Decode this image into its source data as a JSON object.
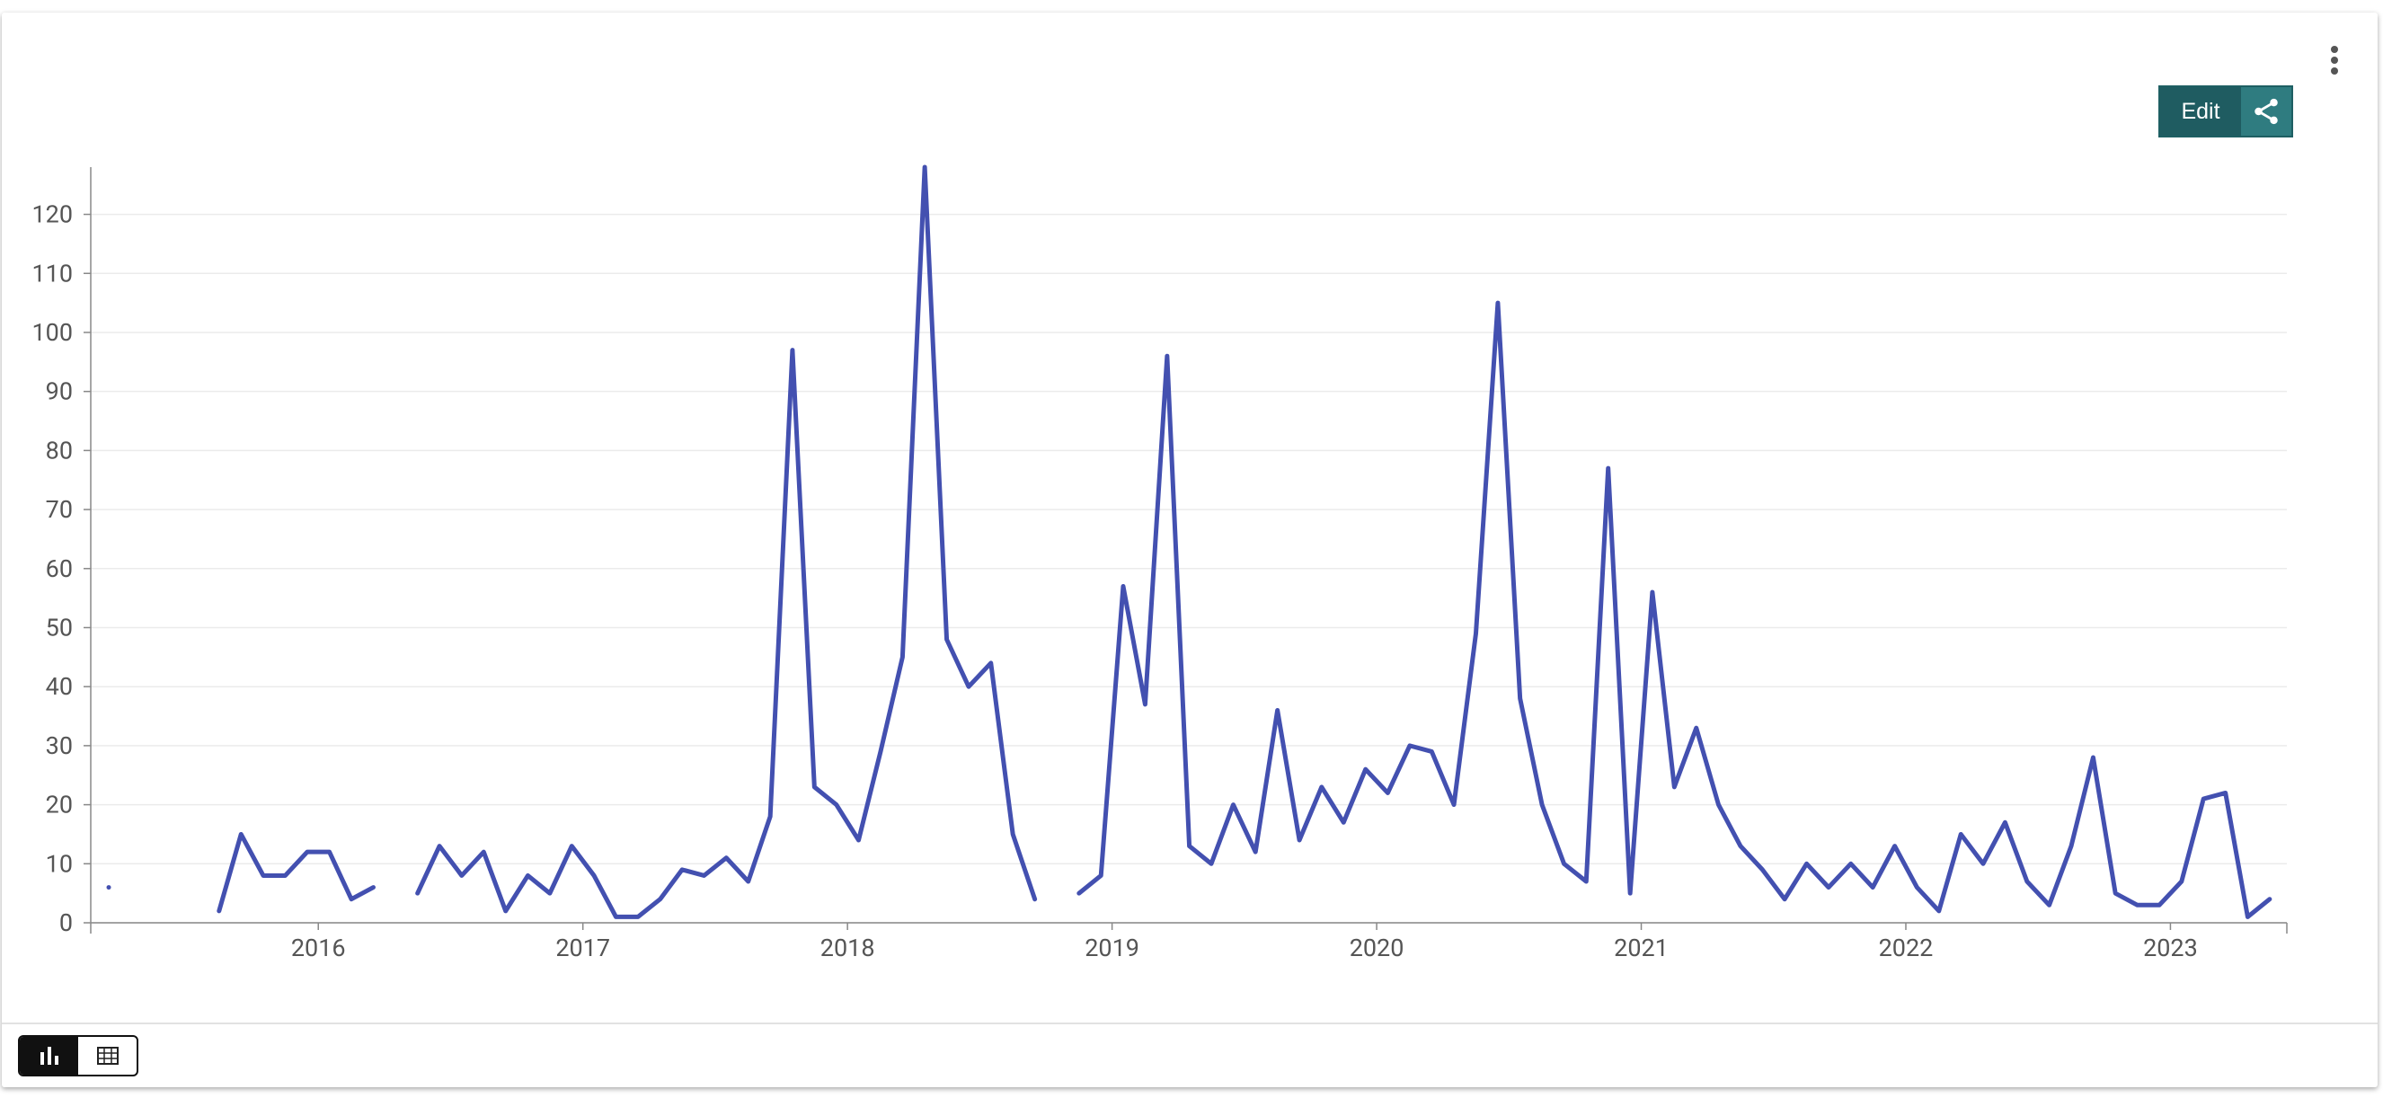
{
  "ui": {
    "edit_button": "Edit"
  },
  "chart_data": {
    "type": "line",
    "x": [
      2015.208,
      2015.292,
      2015.375,
      2015.458,
      2015.542,
      2015.625,
      2015.708,
      2015.792,
      2015.875,
      2015.958,
      2016.042,
      2016.125,
      2016.208,
      2016.292,
      2016.375,
      2016.458,
      2016.542,
      2016.625,
      2016.708,
      2016.792,
      2016.875,
      2016.958,
      2017.042,
      2017.125,
      2017.208,
      2017.292,
      2017.375,
      2017.458,
      2017.542,
      2017.625,
      2017.708,
      2017.792,
      2017.875,
      2017.958,
      2018.042,
      2018.125,
      2018.208,
      2018.292,
      2018.375,
      2018.458,
      2018.542,
      2018.625,
      2018.708,
      2018.792,
      2018.875,
      2018.958,
      2019.042,
      2019.125,
      2019.208,
      2019.292,
      2019.375,
      2019.458,
      2019.542,
      2019.625,
      2019.708,
      2019.792,
      2019.875,
      2019.958,
      2020.042,
      2020.125,
      2020.208,
      2020.292,
      2020.375,
      2020.458,
      2020.542,
      2020.625,
      2020.708,
      2020.792,
      2020.875,
      2020.958,
      2021.042,
      2021.125,
      2021.208,
      2021.292,
      2021.375,
      2021.458,
      2021.542,
      2021.625,
      2021.708,
      2021.792,
      2021.875,
      2021.958,
      2022.042,
      2022.125,
      2022.208,
      2022.292,
      2022.375,
      2022.458,
      2022.542,
      2022.625,
      2022.708,
      2022.792,
      2022.875,
      2022.958,
      2023.042,
      2023.125,
      2023.208,
      2023.292,
      2023.375
    ],
    "series": [
      {
        "color": "#4350b0",
        "values": [
          6,
          null,
          null,
          null,
          null,
          2,
          15,
          8,
          8,
          12,
          12,
          4,
          6,
          null,
          5,
          13,
          8,
          12,
          2,
          8,
          5,
          13,
          8,
          1,
          1,
          4,
          9,
          8,
          11,
          7,
          18,
          97,
          23,
          20,
          14,
          29,
          45,
          128,
          48,
          40,
          44,
          15,
          4,
          null,
          5,
          8,
          57,
          37,
          96,
          13,
          10,
          20,
          12,
          36,
          14,
          23,
          17,
          26,
          22,
          30,
          29,
          20,
          49,
          105,
          38,
          20,
          10,
          7,
          77,
          5,
          56,
          23,
          33,
          20,
          13,
          9,
          4,
          10,
          6,
          10,
          6,
          13,
          6,
          2,
          15,
          10,
          17,
          7,
          3,
          13,
          28,
          5,
          3,
          3,
          7,
          21,
          22,
          1,
          4
        ]
      }
    ],
    "xlim": [
      2015.14,
      2023.44
    ],
    "xticks": [
      2016,
      2017,
      2018,
      2019,
      2020,
      2021,
      2022,
      2023
    ],
    "ylim": [
      0,
      128
    ],
    "yticks": [
      0,
      10,
      20,
      30,
      40,
      50,
      60,
      70,
      80,
      90,
      100,
      110,
      120
    ],
    "grid": true
  }
}
